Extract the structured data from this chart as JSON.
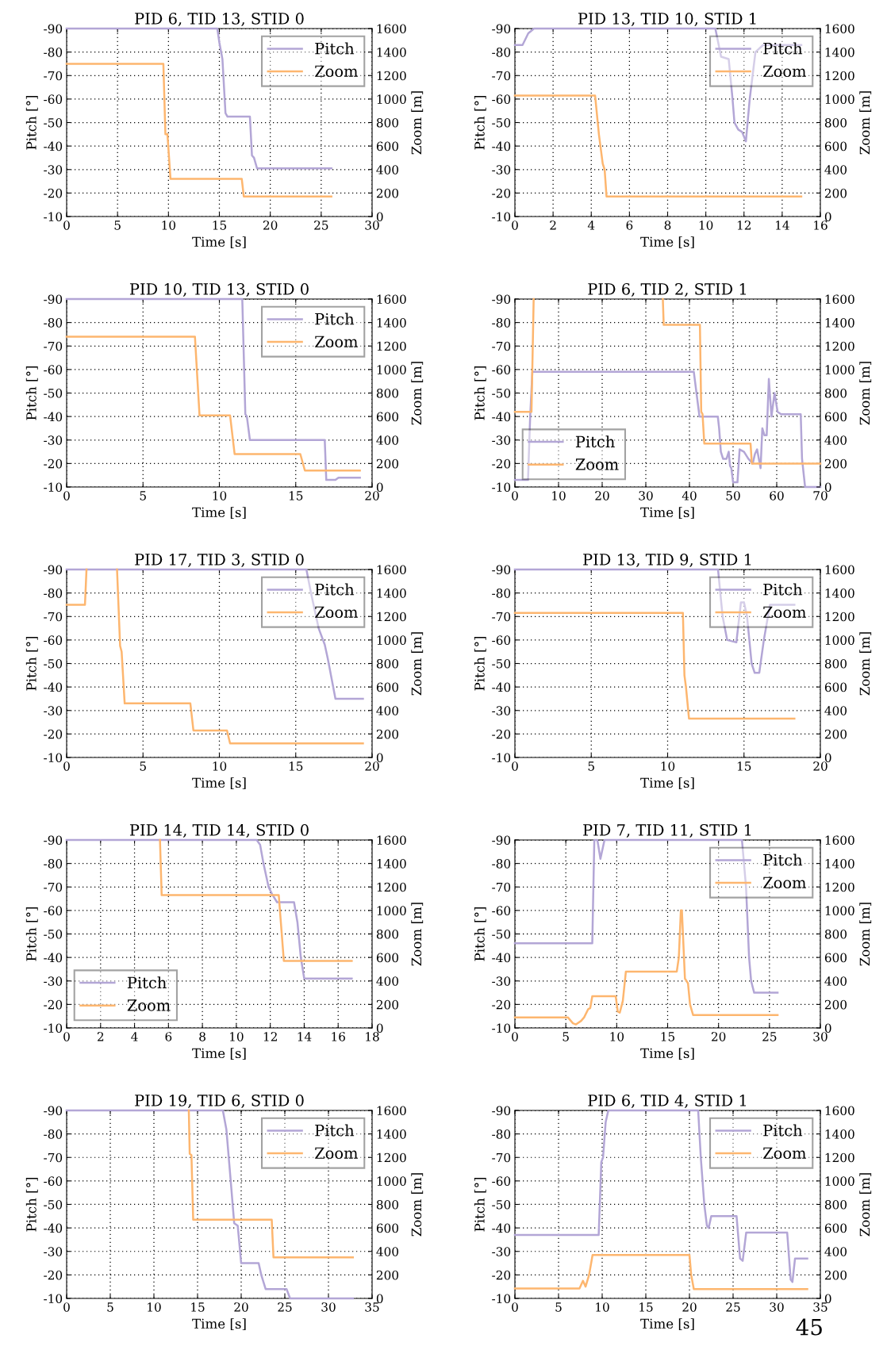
{
  "chart_data": [
    {
      "type": "line",
      "title": "PID 6, TID 13, STID 0",
      "xlabel": "Time [s]",
      "ylabel": "Pitch [°]",
      "y2label": "Zoom [m]",
      "xlim": [
        0,
        30
      ],
      "xticks": [
        0,
        5,
        10,
        15,
        20,
        25,
        30
      ],
      "ylim": [
        -10,
        -90
      ],
      "yticks": [
        -90,
        -80,
        -70,
        -60,
        -50,
        -40,
        -30,
        -20,
        -10
      ],
      "y2lim": [
        0,
        1600
      ],
      "y2ticks": [
        0,
        200,
        400,
        600,
        800,
        1000,
        1200,
        1400,
        1600
      ],
      "grid": true,
      "legend": "top right",
      "series": [
        {
          "name": "Pitch",
          "color": "#b3a6d6",
          "x": [
            0,
            14.8,
            15.0,
            15.3,
            15.6,
            15.8,
            18.0,
            18.2,
            18.4,
            18.7,
            26.0
          ],
          "values": [
            -90,
            -90,
            -84,
            -77,
            -54,
            -52.5,
            -52.5,
            -36,
            -35,
            -30.5,
            -30.5
          ]
        },
        {
          "name": "Zoom",
          "color": "#fdb66f",
          "axis": "y2",
          "x": [
            0,
            9.5,
            9.7,
            9.9,
            10.2,
            17.2,
            17.4,
            26
          ],
          "values": [
            1300,
            1300,
            700,
            700,
            320,
            320,
            170,
            170
          ]
        }
      ]
    },
    {
      "type": "line",
      "title": "PID 13, TID 10, STID 1",
      "xlabel": "Time [s]",
      "ylabel": "Pitch [°]",
      "y2label": "Zoom [m]",
      "xlim": [
        0,
        16
      ],
      "xticks": [
        0,
        2,
        4,
        6,
        8,
        10,
        12,
        14,
        16
      ],
      "ylim": [
        -10,
        -90
      ],
      "yticks": [
        -90,
        -80,
        -70,
        -60,
        -50,
        -40,
        -30,
        -20,
        -10
      ],
      "y2lim": [
        0,
        1600
      ],
      "y2ticks": [
        0,
        200,
        400,
        600,
        800,
        1000,
        1200,
        1400,
        1600
      ],
      "grid": true,
      "legend": "top right",
      "series": [
        {
          "name": "Pitch",
          "color": "#b3a6d6",
          "x": [
            0,
            0.4,
            0.7,
            1.0,
            10.5,
            10.8,
            11.2,
            11.4,
            11.5,
            11.7,
            11.9,
            12.1,
            12.3,
            12.6,
            13.0,
            15.0
          ],
          "values": [
            -83,
            -83,
            -88,
            -90,
            -90,
            -78,
            -77,
            -60,
            -50,
            -47,
            -46,
            -42,
            -60,
            -80,
            -83,
            -83
          ]
        },
        {
          "name": "Zoom",
          "color": "#fdb66f",
          "axis": "y2",
          "x": [
            0,
            4.2,
            4.4,
            4.6,
            4.7,
            4.8,
            15
          ],
          "values": [
            1030,
            1030,
            700,
            450,
            400,
            170,
            170
          ]
        }
      ]
    },
    {
      "type": "line",
      "title": "PID 10, TID 13, STID 0",
      "xlabel": "Time [s]",
      "ylabel": "Pitch [°]",
      "y2label": "Zoom [m]",
      "xlim": [
        0,
        20
      ],
      "xticks": [
        0,
        5,
        10,
        15,
        20
      ],
      "ylim": [
        -10,
        -90
      ],
      "yticks": [
        -90,
        -80,
        -70,
        -60,
        -50,
        -40,
        -30,
        -20,
        -10
      ],
      "y2lim": [
        0,
        1600
      ],
      "y2ticks": [
        0,
        200,
        400,
        600,
        800,
        1000,
        1200,
        1400,
        1600
      ],
      "grid": true,
      "legend": "top right",
      "series": [
        {
          "name": "Pitch",
          "color": "#b3a6d6",
          "x": [
            0,
            11.5,
            11.7,
            11.8,
            12.0,
            16.9,
            17.0,
            17.6,
            17.8,
            19.2
          ],
          "values": [
            -90,
            -90,
            -41,
            -40,
            -30,
            -30,
            -13,
            -13,
            -14,
            -14
          ]
        },
        {
          "name": "Zoom",
          "color": "#fdb66f",
          "axis": "y2",
          "x": [
            0,
            8.4,
            8.7,
            10.7,
            11.0,
            15.3,
            15.6,
            19.2
          ],
          "values": [
            1280,
            1280,
            610,
            610,
            280,
            280,
            140,
            140
          ]
        }
      ]
    },
    {
      "type": "line",
      "title": "PID 6, TID 2, STID 1",
      "xlabel": "Time [s]",
      "ylabel": "Pitch [°]",
      "y2label": "Zoom [m]",
      "xlim": [
        0,
        70
      ],
      "xticks": [
        0,
        10,
        20,
        30,
        40,
        50,
        60,
        70
      ],
      "ylim": [
        -10,
        -90
      ],
      "yticks": [
        -90,
        -80,
        -70,
        -60,
        -50,
        -40,
        -30,
        -20,
        -10
      ],
      "y2lim": [
        0,
        1600
      ],
      "y2ticks": [
        0,
        200,
        400,
        600,
        800,
        1000,
        1200,
        1400,
        1600
      ],
      "grid": true,
      "legend": "bottom left",
      "series": [
        {
          "name": "Pitch",
          "color": "#b3a6d6",
          "x": [
            0,
            3,
            3.5,
            4,
            41,
            42.3,
            46.5,
            46.8,
            47.2,
            47.7,
            48.5,
            49,
            49.3,
            49.6,
            50,
            51,
            51.5,
            52.5,
            53.5,
            54.5,
            55,
            55.5,
            56.3,
            56.7,
            57.2,
            57.7,
            58.2,
            58.8,
            59.5,
            60.2,
            61,
            65.5,
            65.8,
            66.5,
            70
          ],
          "values": [
            -13,
            -13,
            -40,
            -59,
            -59,
            -40,
            -40,
            -35,
            -25,
            -22,
            -22,
            -25,
            -19,
            -18,
            -12,
            -12,
            -26,
            -25,
            -22,
            -20,
            -24,
            -26,
            -18,
            -35,
            -32,
            -32,
            -56,
            -40,
            -50,
            -42,
            -41,
            -41,
            -22,
            -10,
            -10
          ]
        },
        {
          "name": "Zoom",
          "color": "#fdb66f",
          "axis": "y2",
          "x": [
            0,
            3.8,
            4.3,
            19,
            33.9,
            34.1,
            42.4,
            42.7,
            43.0,
            43.4,
            54.0,
            54.3,
            70
          ],
          "values": [
            640,
            640,
            1600,
            null,
            1600,
            1380,
            1380,
            640,
            620,
            370,
            370,
            200,
            200
          ]
        }
      ]
    },
    {
      "type": "line",
      "title": "PID 17, TID 3, STID 0",
      "xlabel": "Time [s]",
      "ylabel": "Pitch [°]",
      "y2label": "Zoom [m]",
      "xlim": [
        0,
        20
      ],
      "xticks": [
        0,
        5,
        10,
        15,
        20
      ],
      "ylim": [
        -10,
        -90
      ],
      "yticks": [
        -90,
        -80,
        -70,
        -60,
        -50,
        -40,
        -30,
        -20,
        -10
      ],
      "y2lim": [
        0,
        1600
      ],
      "y2ticks": [
        0,
        200,
        400,
        600,
        800,
        1000,
        1200,
        1400,
        1600
      ],
      "grid": true,
      "legend": "top right",
      "series": [
        {
          "name": "Pitch",
          "color": "#b3a6d6",
          "x": [
            0,
            15.7,
            16.0,
            16.5,
            16.9,
            17.1,
            17.6,
            19.4
          ],
          "values": [
            -90,
            -90,
            -80,
            -65,
            -58,
            -52,
            -35,
            -35
          ]
        },
        {
          "name": "Zoom",
          "color": "#fdb66f",
          "axis": "y2",
          "x": [
            0,
            1.2,
            1.3,
            2.3,
            3.3,
            3.5,
            3.6,
            3.8,
            8.1,
            8.3,
            10.5,
            10.7,
            19.4
          ],
          "values": [
            1300,
            1300,
            1600,
            null,
            1600,
            950,
            900,
            460,
            460,
            230,
            230,
            120,
            120
          ]
        }
      ]
    },
    {
      "type": "line",
      "title": "PID 13, TID 9, STID 1",
      "xlabel": "Time [s]",
      "ylabel": "Pitch [°]",
      "y2label": "Zoom [m]",
      "xlim": [
        0,
        20
      ],
      "xticks": [
        0,
        5,
        10,
        15,
        20
      ],
      "ylim": [
        -10,
        -90
      ],
      "yticks": [
        -90,
        -80,
        -70,
        -60,
        -50,
        -40,
        -30,
        -20,
        -10
      ],
      "y2lim": [
        0,
        1600
      ],
      "y2ticks": [
        0,
        200,
        400,
        600,
        800,
        1000,
        1200,
        1400,
        1600
      ],
      "grid": true,
      "legend": "top right",
      "series": [
        {
          "name": "Pitch",
          "color": "#b3a6d6",
          "x": [
            0,
            13.3,
            13.6,
            13.9,
            14.5,
            14.8,
            15.0,
            15.2,
            15.5,
            15.7,
            16.0,
            16.3,
            16.7,
            18.3
          ],
          "values": [
            -90,
            -90,
            -70,
            -60,
            -59,
            -76,
            -76,
            -70,
            -50,
            -46,
            -46,
            -60,
            -75,
            -75
          ]
        },
        {
          "name": "Zoom",
          "color": "#fdb66f",
          "axis": "y2",
          "x": [
            0,
            11.0,
            11.1,
            11.2,
            11.4,
            18.3
          ],
          "values": [
            1230,
            1230,
            700,
            600,
            330,
            330
          ]
        }
      ]
    },
    {
      "type": "line",
      "title": "PID 14, TID 14, STID 0",
      "xlabel": "Time [s]",
      "ylabel": "Pitch [°]",
      "y2label": "Zoom [m]",
      "xlim": [
        0,
        18
      ],
      "xticks": [
        0,
        2,
        4,
        6,
        8,
        10,
        12,
        14,
        16,
        18
      ],
      "ylim": [
        -10,
        -90
      ],
      "yticks": [
        -90,
        -80,
        -70,
        -60,
        -50,
        -40,
        -30,
        -20,
        -10
      ],
      "y2lim": [
        0,
        1600
      ],
      "y2ticks": [
        0,
        200,
        400,
        600,
        800,
        1000,
        1200,
        1400,
        1600
      ],
      "grid": true,
      "legend": "bottom left",
      "series": [
        {
          "name": "Pitch",
          "color": "#b3a6d6",
          "x": [
            0,
            11.2,
            11.4,
            11.6,
            11.9,
            12.1,
            12.4,
            13.4,
            13.6,
            13.8,
            14.0,
            16.8
          ],
          "values": [
            -90,
            -90,
            -88,
            -80,
            -70,
            -67,
            -63.5,
            -63.5,
            -55,
            -40,
            -31,
            -31
          ]
        },
        {
          "name": "Zoom",
          "color": "#fdb66f",
          "axis": "y2",
          "x": [
            5.5,
            5.6,
            12.5,
            12.8,
            16.8
          ],
          "values": [
            1600,
            1130,
            1130,
            570,
            570
          ]
        }
      ]
    },
    {
      "type": "line",
      "title": "PID 7, TID 11, STID 1",
      "xlabel": "Time [s]",
      "ylabel": "Pitch [°]",
      "y2label": "Zoom [m]",
      "xlim": [
        0,
        30
      ],
      "xticks": [
        0,
        5,
        10,
        15,
        20,
        25,
        30
      ],
      "ylim": [
        -10,
        -90
      ],
      "yticks": [
        -90,
        -80,
        -70,
        -60,
        -50,
        -40,
        -30,
        -20,
        -10
      ],
      "y2lim": [
        0,
        1600
      ],
      "y2ticks": [
        0,
        200,
        400,
        600,
        800,
        1000,
        1200,
        1400,
        1600
      ],
      "grid": true,
      "legend": "top right",
      "series": [
        {
          "name": "Pitch",
          "color": "#b3a6d6",
          "x": [
            0,
            7.6,
            7.8,
            8.1,
            8.4,
            8.8,
            22.3,
            22.7,
            23.0,
            23.2,
            23.5,
            25.8
          ],
          "values": [
            -46,
            -46,
            -90,
            -90,
            -82,
            -90,
            -90,
            -70,
            -40,
            -30,
            -25,
            -25
          ]
        },
        {
          "name": "Zoom",
          "color": "#fdb66f",
          "axis": "y2",
          "x": [
            0,
            5.2,
            5.7,
            6.0,
            6.5,
            6.8,
            7.2,
            7.4,
            7.6,
            9.9,
            10.1,
            10.3,
            10.6,
            10.9,
            15.9,
            16.1,
            16.3,
            16.4,
            16.7,
            17.0,
            17.2,
            17.5,
            25.8
          ],
          "values": [
            90,
            90,
            40,
            30,
            60,
            90,
            160,
            170,
            270,
            270,
            140,
            130,
            230,
            480,
            480,
            600,
            1000,
            1000,
            420,
            380,
            200,
            110,
            110
          ]
        }
      ]
    },
    {
      "type": "line",
      "title": "PID 19, TID 6, STID 0",
      "xlabel": "Time [s]",
      "ylabel": "Pitch [°]",
      "y2label": "Zoom [m]",
      "xlim": [
        0,
        35
      ],
      "xticks": [
        0,
        5,
        10,
        15,
        20,
        25,
        30,
        35
      ],
      "ylim": [
        -10,
        -90
      ],
      "yticks": [
        -90,
        -80,
        -70,
        -60,
        -50,
        -40,
        -30,
        -20,
        -10
      ],
      "y2lim": [
        0,
        1600
      ],
      "y2ticks": [
        0,
        200,
        400,
        600,
        800,
        1000,
        1200,
        1400,
        1600
      ],
      "grid": true,
      "legend": "top right",
      "series": [
        {
          "name": "Pitch",
          "color": "#b3a6d6",
          "x": [
            0,
            17.9,
            18.3,
            18.8,
            19.2,
            19.6,
            20.0,
            22.0,
            22.3,
            22.8,
            25.2,
            25.6,
            32.8
          ],
          "values": [
            -90,
            -90,
            -82,
            -60,
            -42,
            -41,
            -25,
            -25,
            -20,
            -14,
            -14,
            -10,
            -10
          ]
        },
        {
          "name": "Zoom",
          "color": "#fdb66f",
          "axis": "y2",
          "x": [
            14.0,
            14.1,
            14.3,
            14.5,
            23.5,
            23.7,
            32.8
          ],
          "values": [
            1600,
            1230,
            1220,
            670,
            670,
            350,
            350
          ]
        }
      ]
    },
    {
      "type": "line",
      "title": "PID 6, TID 4, STID 1",
      "xlabel": "Time [s]",
      "ylabel": "Pitch [°]",
      "y2label": "Zoom [m]",
      "xlim": [
        0,
        35
      ],
      "xticks": [
        0,
        5,
        10,
        15,
        20,
        25,
        30,
        35
      ],
      "ylim": [
        -10,
        -90
      ],
      "yticks": [
        -90,
        -80,
        -70,
        -60,
        -50,
        -40,
        -30,
        -20,
        -10
      ],
      "y2lim": [
        0,
        1600
      ],
      "y2ticks": [
        0,
        200,
        400,
        600,
        800,
        1000,
        1200,
        1400,
        1600
      ],
      "grid": true,
      "legend": "top right",
      "annotations": [
        "45"
      ],
      "series": [
        {
          "name": "Pitch",
          "color": "#b3a6d6",
          "x": [
            0,
            9.6,
            9.9,
            10.1,
            10.4,
            10.7,
            21.0,
            21.3,
            21.7,
            22.0,
            22.2,
            22.5,
            25.4,
            25.8,
            26.1,
            26.5,
            31.2,
            31.6,
            31.8,
            32.1,
            33.5
          ],
          "values": [
            -37,
            -37,
            -68,
            -70,
            -85,
            -90,
            -90,
            -70,
            -50,
            -41,
            -40,
            -45,
            -45,
            -27,
            -26,
            -38,
            -38,
            -18,
            -17,
            -27,
            -27
          ]
        },
        {
          "name": "Zoom",
          "color": "#fdb66f",
          "axis": "y2",
          "x": [
            0,
            7.4,
            7.8,
            8.1,
            8.5,
            8.9,
            20.0,
            20.2,
            20.5,
            33.5
          ],
          "values": [
            85,
            85,
            150,
            100,
            200,
            370,
            370,
            200,
            80,
            80
          ]
        }
      ]
    }
  ]
}
